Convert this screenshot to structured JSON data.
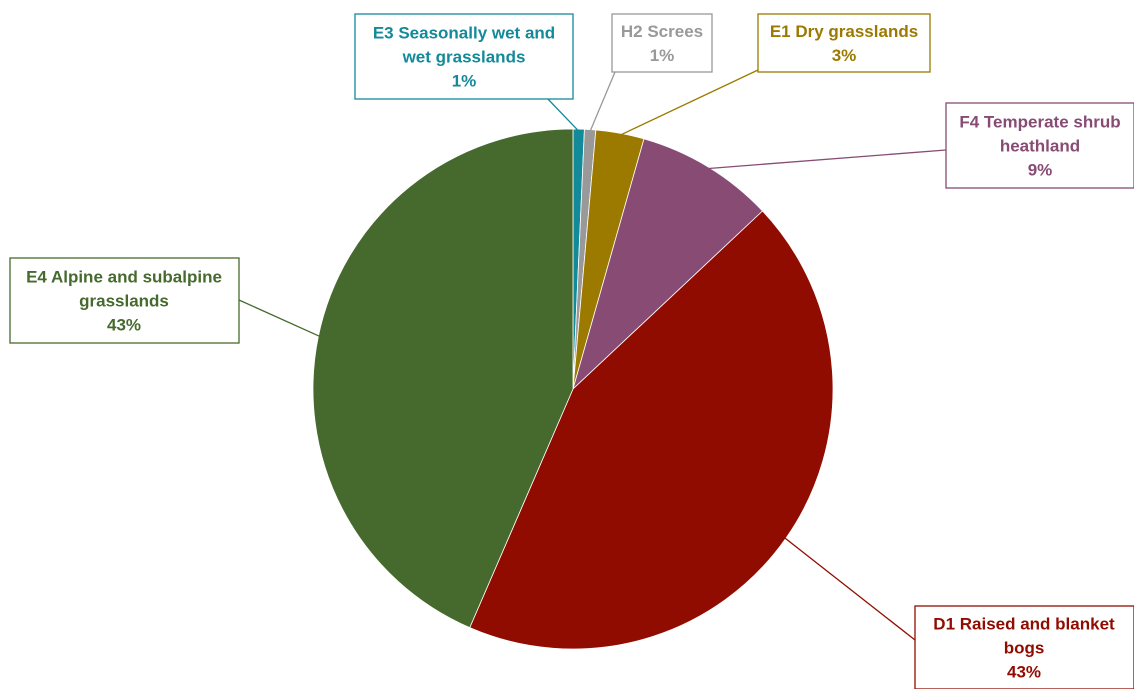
{
  "chart_data": {
    "type": "pie",
    "start_angle_deg": 0,
    "direction": "clockwise",
    "slices": [
      {
        "name": "E3 Seasonally wet and wet grasslands",
        "line1": "E3 Seasonally wet and",
        "line2": "wet grasslands",
        "line3": "",
        "pct_label": "1%",
        "value": 0.7,
        "color": "#138a99"
      },
      {
        "name": "H2 Screes",
        "line1": "H2 Screes",
        "line2": "",
        "line3": "",
        "pct_label": "1%",
        "value": 0.7,
        "color": "#999999"
      },
      {
        "name": "E1 Dry grasslands",
        "line1": "E1 Dry grasslands",
        "line2": "",
        "line3": "",
        "pct_label": "3%",
        "value": 3.0,
        "color": "#9c7a00"
      },
      {
        "name": "F4 Temperate shrub heathland",
        "line1": "F4 Temperate shrub",
        "line2": "heathland",
        "line3": "",
        "pct_label": "9%",
        "value": 8.6,
        "color": "#874b74"
      },
      {
        "name": "D1 Raised and blanket bogs",
        "line1": "D1 Raised and blanket",
        "line2": "bogs",
        "line3": "",
        "pct_label": "43%",
        "value": 43.5,
        "color": "#910c00"
      },
      {
        "name": "E4 Alpine and subalpine grasslands",
        "line1": "E4 Alpine and subalpine",
        "line2": "grasslands",
        "line3": "",
        "pct_label": "43%",
        "value": 43.5,
        "color": "#466a2e"
      }
    ]
  }
}
